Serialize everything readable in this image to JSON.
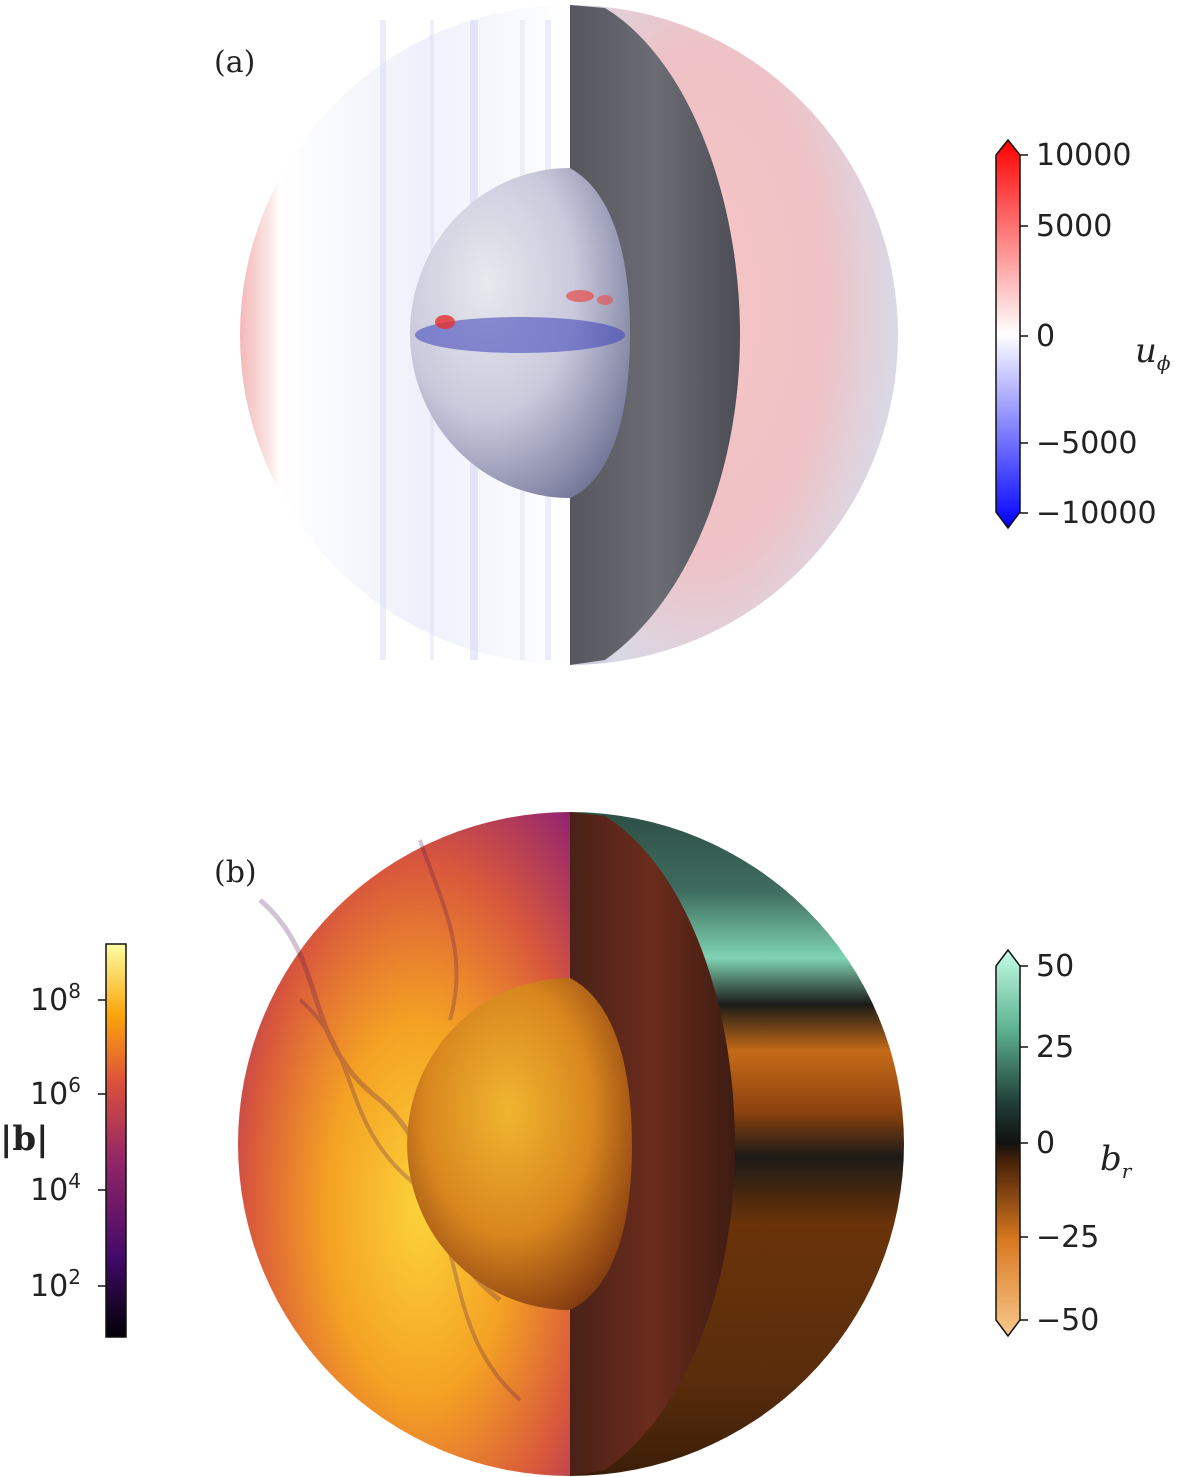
{
  "panels": [
    {
      "label": "(a)",
      "colorbar": {
        "title_symbol": "u",
        "title_subscript": "ϕ",
        "ticks": [
          "10000",
          "5000",
          "0",
          "−5000",
          "−10000"
        ],
        "range": [
          -10000,
          10000
        ],
        "colormap": [
          "#0000ff",
          "#ffffff",
          "#ff0000"
        ]
      }
    },
    {
      "label": "(b)",
      "colorbar_left": {
        "title": "|b|",
        "ticks": [
          {
            "base": "10",
            "exp": "8"
          },
          {
            "base": "10",
            "exp": "6"
          },
          {
            "base": "10",
            "exp": "4"
          },
          {
            "base": "10",
            "exp": "2"
          }
        ],
        "scale": "log",
        "colormap": [
          "#000004",
          "#420a68",
          "#932667",
          "#dd513a",
          "#fca50a",
          "#fcffa4"
        ]
      },
      "colorbar_right": {
        "title_symbol": "b",
        "title_subscript": "r",
        "ticks": [
          "50",
          "25",
          "0",
          "−25",
          "−50"
        ],
        "range": [
          -50,
          50
        ],
        "colormap": [
          "#f4b266",
          "#c0600f",
          "#1a1a1a",
          "#2e6a5a",
          "#a6f5d6"
        ]
      }
    }
  ]
}
